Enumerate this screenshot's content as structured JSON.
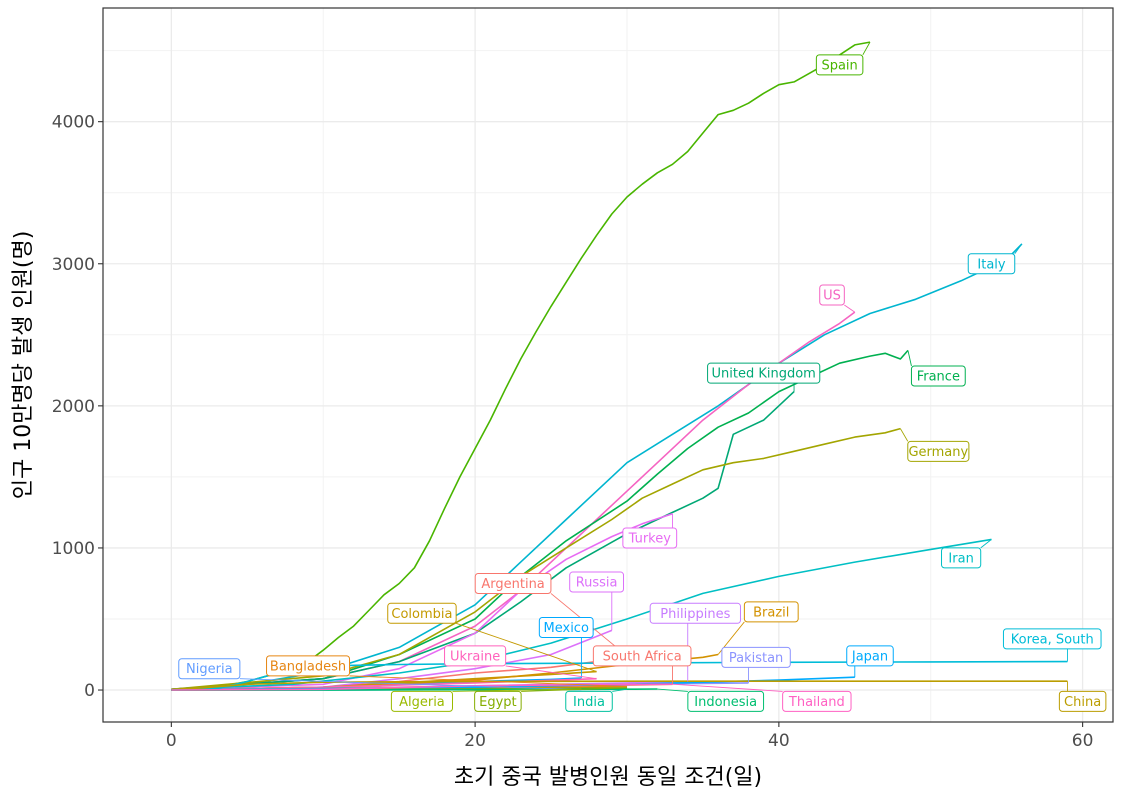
{
  "chart_data": {
    "type": "line",
    "title": "",
    "xlabel": "초기 중국 발병인원 동일 조건(일)",
    "ylabel": "인구 10만명당 발생 인원(명)",
    "xlim": [
      -4.5,
      62
    ],
    "ylim": [
      -225,
      4800
    ],
    "x_ticks": [
      0,
      20,
      40,
      60
    ],
    "y_ticks": [
      0,
      1000,
      2000,
      3000,
      4000
    ],
    "x_tick_labels": [
      "0",
      "20",
      "40",
      "60"
    ],
    "y_tick_labels": [
      "0",
      "1000",
      "2000",
      "3000",
      "4000"
    ],
    "grid": true,
    "legend": "none",
    "series": [
      {
        "name": "Spain",
        "color": "#49B500",
        "label_pos": [
          44,
          4400
        ],
        "points": [
          [
            0,
            5
          ],
          [
            3,
            20
          ],
          [
            5,
            60
          ],
          [
            7,
            120
          ],
          [
            9,
            200
          ],
          [
            10,
            280
          ],
          [
            11,
            370
          ],
          [
            12,
            450
          ],
          [
            13,
            560
          ],
          [
            14,
            670
          ],
          [
            15,
            750
          ],
          [
            16,
            860
          ],
          [
            17,
            1050
          ],
          [
            18,
            1280
          ],
          [
            19,
            1500
          ],
          [
            20,
            1700
          ],
          [
            21,
            1900
          ],
          [
            22,
            2120
          ],
          [
            23,
            2330
          ],
          [
            24,
            2520
          ],
          [
            25,
            2700
          ],
          [
            26,
            2870
          ],
          [
            27,
            3040
          ],
          [
            28,
            3200
          ],
          [
            29,
            3350
          ],
          [
            30,
            3470
          ],
          [
            31,
            3560
          ],
          [
            32,
            3640
          ],
          [
            33,
            3700
          ],
          [
            34,
            3790
          ],
          [
            35,
            3920
          ],
          [
            36,
            4050
          ],
          [
            37,
            4080
          ],
          [
            38,
            4130
          ],
          [
            39,
            4200
          ],
          [
            40,
            4260
          ],
          [
            41,
            4280
          ],
          [
            42,
            4340
          ],
          [
            43,
            4400
          ],
          [
            44,
            4470
          ],
          [
            45,
            4540
          ],
          [
            46,
            4560
          ]
        ]
      },
      {
        "name": "Italy",
        "color": "#00B5CF",
        "label_pos": [
          54,
          3000
        ],
        "points": [
          [
            0,
            5
          ],
          [
            5,
            40
          ],
          [
            10,
            130
          ],
          [
            15,
            300
          ],
          [
            20,
            600
          ],
          [
            23,
            900
          ],
          [
            26,
            1200
          ],
          [
            30,
            1600
          ],
          [
            33,
            1800
          ],
          [
            36,
            2000
          ],
          [
            40,
            2300
          ],
          [
            43,
            2500
          ],
          [
            46,
            2650
          ],
          [
            49,
            2750
          ],
          [
            52,
            2880
          ],
          [
            55,
            3030
          ],
          [
            56,
            3140
          ]
        ]
      },
      {
        "name": "US",
        "color": "#F564C2",
        "label_pos": [
          43.5,
          2780
        ],
        "points": [
          [
            0,
            5
          ],
          [
            10,
            80
          ],
          [
            15,
            200
          ],
          [
            20,
            450
          ],
          [
            23,
            700
          ],
          [
            26,
            1000
          ],
          [
            29,
            1300
          ],
          [
            32,
            1600
          ],
          [
            35,
            1900
          ],
          [
            38,
            2150
          ],
          [
            40,
            2300
          ],
          [
            42,
            2450
          ],
          [
            44,
            2580
          ],
          [
            45,
            2660
          ]
        ]
      },
      {
        "name": "France",
        "color": "#00B050",
        "label_pos": [
          50.5,
          2210
        ],
        "points": [
          [
            0,
            5
          ],
          [
            10,
            80
          ],
          [
            15,
            250
          ],
          [
            20,
            500
          ],
          [
            23,
            800
          ],
          [
            26,
            1050
          ],
          [
            30,
            1330
          ],
          [
            32,
            1520
          ],
          [
            34,
            1700
          ],
          [
            36,
            1850
          ],
          [
            38,
            1950
          ],
          [
            40,
            2100
          ],
          [
            42,
            2200
          ],
          [
            44,
            2300
          ],
          [
            46,
            2350
          ],
          [
            47,
            2370
          ],
          [
            48,
            2330
          ],
          [
            48.5,
            2390
          ]
        ]
      },
      {
        "name": "United Kingdom",
        "color": "#00A875",
        "label_pos": [
          39,
          2230
        ],
        "points": [
          [
            0,
            5
          ],
          [
            10,
            80
          ],
          [
            15,
            200
          ],
          [
            20,
            400
          ],
          [
            23,
            620
          ],
          [
            26,
            860
          ],
          [
            30,
            1100
          ],
          [
            33,
            1250
          ],
          [
            35,
            1350
          ],
          [
            36,
            1420
          ],
          [
            37,
            1800
          ],
          [
            39,
            1900
          ],
          [
            41,
            2100
          ]
        ]
      },
      {
        "name": "Germany",
        "color": "#A3A500",
        "label_pos": [
          50.5,
          1680
        ],
        "points": [
          [
            0,
            5
          ],
          [
            10,
            100
          ],
          [
            15,
            250
          ],
          [
            20,
            550
          ],
          [
            23,
            800
          ],
          [
            26,
            1000
          ],
          [
            29,
            1200
          ],
          [
            31,
            1350
          ],
          [
            33,
            1450
          ],
          [
            35,
            1550
          ],
          [
            37,
            1600
          ],
          [
            39,
            1630
          ],
          [
            41,
            1680
          ],
          [
            43,
            1730
          ],
          [
            45,
            1780
          ],
          [
            47,
            1810
          ],
          [
            48,
            1840
          ]
        ]
      },
      {
        "name": "Turkey",
        "color": "#E76BF3",
        "label_pos": [
          31.5,
          1070
        ],
        "points": [
          [
            0,
            2
          ],
          [
            10,
            40
          ],
          [
            15,
            150
          ],
          [
            20,
            400
          ],
          [
            23,
            700
          ],
          [
            26,
            920
          ],
          [
            29,
            1080
          ],
          [
            31,
            1170
          ],
          [
            33,
            1240
          ]
        ]
      },
      {
        "name": "Iran",
        "color": "#00BFC4",
        "label_pos": [
          52,
          930
        ],
        "points": [
          [
            0,
            5
          ],
          [
            8,
            40
          ],
          [
            15,
            120
          ],
          [
            20,
            200
          ],
          [
            25,
            330
          ],
          [
            30,
            500
          ],
          [
            35,
            680
          ],
          [
            40,
            800
          ],
          [
            45,
            900
          ],
          [
            50,
            990
          ],
          [
            54,
            1060
          ]
        ]
      },
      {
        "name": "Argentina",
        "color": "#F8766D",
        "label_pos": [
          22.5,
          750
        ],
        "points": [
          [
            0,
            1
          ],
          [
            10,
            20
          ],
          [
            15,
            60
          ],
          [
            20,
            120
          ],
          [
            25,
            160
          ],
          [
            28,
            200
          ],
          [
            30,
            240
          ]
        ]
      },
      {
        "name": "Russia",
        "color": "#DC71FA",
        "label_pos": [
          28,
          760
        ],
        "points": [
          [
            0,
            1
          ],
          [
            10,
            20
          ],
          [
            15,
            80
          ],
          [
            20,
            150
          ],
          [
            25,
            250
          ],
          [
            29,
            420
          ]
        ]
      },
      {
        "name": "Colombia",
        "color": "#C49A00",
        "label_pos": [
          16.5,
          540
        ],
        "points": [
          [
            0,
            1
          ],
          [
            10,
            20
          ],
          [
            15,
            50
          ],
          [
            20,
            80
          ],
          [
            25,
            110
          ],
          [
            28,
            130
          ]
        ]
      },
      {
        "name": "Mexico",
        "color": "#00A9FF",
        "label_pos": [
          26,
          440
        ],
        "points": [
          [
            0,
            1
          ],
          [
            10,
            20
          ],
          [
            15,
            40
          ],
          [
            20,
            60
          ],
          [
            25,
            75
          ],
          [
            27,
            85
          ]
        ]
      },
      {
        "name": "Philippines",
        "color": "#C77CFF",
        "label_pos": [
          34.5,
          540
        ],
        "points": [
          [
            0,
            1
          ],
          [
            10,
            10
          ],
          [
            20,
            30
          ],
          [
            30,
            50
          ],
          [
            34,
            60
          ]
        ]
      },
      {
        "name": "Brazil",
        "color": "#D39200",
        "label_pos": [
          39.5,
          550
        ],
        "points": [
          [
            0,
            1
          ],
          [
            10,
            20
          ],
          [
            20,
            70
          ],
          [
            25,
            120
          ],
          [
            30,
            180
          ],
          [
            35,
            230
          ],
          [
            36,
            250
          ]
        ]
      },
      {
        "name": "Nigeria",
        "color": "#619CFF",
        "label_pos": [
          2.5,
          150
        ],
        "points": [
          [
            0,
            0
          ],
          [
            10,
            1
          ],
          [
            20,
            2
          ],
          [
            27,
            3
          ]
        ]
      },
      {
        "name": "Bangladesh",
        "color": "#E68613",
        "label_pos": [
          9,
          170
        ],
        "points": [
          [
            0,
            0
          ],
          [
            10,
            5
          ],
          [
            20,
            15
          ],
          [
            30,
            25
          ]
        ]
      },
      {
        "name": "Ukraine",
        "color": "#FF62BC",
        "label_pos": [
          20,
          240
        ],
        "points": [
          [
            0,
            1
          ],
          [
            10,
            20
          ],
          [
            20,
            50
          ],
          [
            28,
            80
          ]
        ]
      },
      {
        "name": "South Africa",
        "color": "#F8766D",
        "label_pos": [
          31,
          240
        ],
        "points": [
          [
            0,
            1
          ],
          [
            10,
            15
          ],
          [
            20,
            25
          ],
          [
            30,
            35
          ],
          [
            33,
            40
          ]
        ]
      },
      {
        "name": "Pakistan",
        "color": "#8B93FF",
        "label_pos": [
          38.5,
          230
        ],
        "points": [
          [
            0,
            1
          ],
          [
            10,
            10
          ],
          [
            20,
            25
          ],
          [
            30,
            40
          ],
          [
            38,
            50
          ]
        ]
      },
      {
        "name": "Japan",
        "color": "#00ABFD",
        "label_pos": [
          46,
          240
        ],
        "points": [
          [
            0,
            1
          ],
          [
            10,
            10
          ],
          [
            20,
            20
          ],
          [
            30,
            40
          ],
          [
            40,
            70
          ],
          [
            45,
            90
          ]
        ]
      },
      {
        "name": "Korea, South",
        "color": "#00BCD8",
        "label_pos": [
          58,
          360
        ],
        "points": [
          [
            0,
            1
          ],
          [
            3,
            10
          ],
          [
            5,
            60
          ],
          [
            8,
            150
          ],
          [
            10,
            170
          ],
          [
            15,
            180
          ],
          [
            20,
            185
          ],
          [
            30,
            190
          ],
          [
            40,
            195
          ],
          [
            50,
            198
          ],
          [
            59,
            200
          ]
        ]
      },
      {
        "name": "China",
        "color": "#BB9D00",
        "label_pos": [
          60,
          -80
        ],
        "points": [
          [
            0,
            5
          ],
          [
            2,
            15
          ],
          [
            5,
            40
          ],
          [
            10,
            55
          ],
          [
            15,
            58
          ],
          [
            20,
            60
          ],
          [
            30,
            62
          ],
          [
            40,
            62
          ],
          [
            50,
            62
          ],
          [
            59,
            62
          ]
        ]
      },
      {
        "name": "Algeria",
        "color": "#9ABA00",
        "label_pos": [
          16.5,
          -80
        ],
        "points": [
          [
            0,
            0
          ],
          [
            10,
            2
          ],
          [
            20,
            5
          ],
          [
            27,
            7
          ]
        ]
      },
      {
        "name": "Egypt",
        "color": "#85AD00",
        "label_pos": [
          21.5,
          -80
        ],
        "points": [
          [
            0,
            0
          ],
          [
            10,
            3
          ],
          [
            20,
            8
          ],
          [
            30,
            15
          ]
        ]
      },
      {
        "name": "India",
        "color": "#00C19F",
        "label_pos": [
          27.5,
          -80
        ],
        "points": [
          [
            0,
            0
          ],
          [
            10,
            1
          ],
          [
            20,
            3
          ],
          [
            30,
            6
          ]
        ]
      },
      {
        "name": "Indonesia",
        "color": "#00BE70",
        "label_pos": [
          36.5,
          -80
        ],
        "points": [
          [
            0,
            0
          ],
          [
            10,
            1
          ],
          [
            20,
            3
          ],
          [
            30,
            6
          ],
          [
            32,
            7
          ]
        ]
      },
      {
        "name": "Thailand",
        "color": "#FF61C3",
        "label_pos": [
          42.5,
          -80
        ],
        "points": [
          [
            0,
            0
          ],
          [
            10,
            5
          ],
          [
            20,
            30
          ],
          [
            30,
            40
          ],
          [
            33,
            41
          ]
        ]
      }
    ]
  }
}
